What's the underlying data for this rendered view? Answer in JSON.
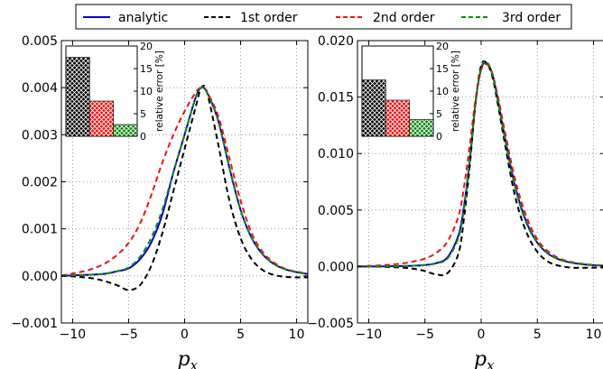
{
  "chart_data": [
    {
      "type": "line",
      "xlabel": "p_x",
      "ylabel": "",
      "xlim": [
        -11,
        11
      ],
      "ylim": [
        -0.001,
        0.005
      ],
      "xticks": [
        -10,
        -5,
        0,
        5,
        10
      ],
      "xtick_labels": [
        "−10",
        "−5",
        "0",
        "5",
        "10"
      ],
      "yticks": [
        -0.001,
        0.0,
        0.001,
        0.002,
        0.003,
        0.004,
        0.005
      ],
      "ytick_labels": [
        "−0.001",
        "0.000",
        "0.001",
        "0.002",
        "0.003",
        "0.004",
        "0.005"
      ],
      "grid": true,
      "x": [
        -11,
        -10,
        -9,
        -8,
        -7,
        -6,
        -5,
        -4,
        -3,
        -2,
        -1,
        0,
        1,
        1.5,
        2,
        3,
        4,
        5,
        6,
        7,
        8,
        9,
        10,
        11
      ],
      "series": [
        {
          "name": "analytic",
          "color": "#0000cc",
          "style": "solid",
          "values": [
            0,
            1e-05,
            2e-05,
            3e-05,
            5e-05,
            0.0001,
            0.00016,
            0.00035,
            0.0007,
            0.0013,
            0.0022,
            0.003,
            0.0038,
            0.004,
            0.0039,
            0.0033,
            0.0023,
            0.0014,
            0.0008,
            0.00045,
            0.00025,
            0.00014,
            8e-05,
            4e-05
          ]
        },
        {
          "name": "1st order",
          "color": "#000000",
          "style": "dashed",
          "values": [
            0,
            -1e-05,
            -3e-05,
            -6e-05,
            -0.00012,
            -0.0002,
            -0.0003,
            -0.0002,
            0.0002,
            0.0009,
            0.0018,
            0.0027,
            0.0036,
            0.004,
            0.0039,
            0.0028,
            0.0016,
            0.0008,
            0.00035,
            0.00012,
            2e-05,
            -2e-05,
            -3e-05,
            -3e-05
          ]
        },
        {
          "name": "2nd order",
          "color": "#ee1111",
          "style": "dashed",
          "values": [
            1e-05,
            5e-05,
            0.0001,
            0.00017,
            0.00028,
            0.00045,
            0.0007,
            0.0011,
            0.0017,
            0.0024,
            0.003,
            0.0035,
            0.0039,
            0.004,
            0.0039,
            0.0034,
            0.0025,
            0.0016,
            0.0009,
            0.0005,
            0.00028,
            0.00015,
            9e-05,
            5e-05
          ]
        },
        {
          "name": "3rd order",
          "color": "#118811",
          "style": "dashed",
          "values": [
            0,
            1e-05,
            2e-05,
            3e-05,
            5e-05,
            0.0001,
            0.00018,
            0.0004,
            0.0008,
            0.0014,
            0.0022,
            0.003,
            0.0038,
            0.004,
            0.0039,
            0.0033,
            0.0023,
            0.0014,
            0.0008,
            0.00045,
            0.00025,
            0.00014,
            8e-05,
            4e-05
          ]
        }
      ],
      "inset": {
        "type": "bar",
        "ylabel": "relative error [%]",
        "ylim": [
          0,
          20
        ],
        "yticks": [
          0,
          5,
          10,
          15,
          20
        ],
        "ytick_labels": [
          "0",
          "5",
          "10",
          "15",
          "20"
        ],
        "values": [
          17.5,
          7.8,
          2.6
        ],
        "colors": [
          "#000000",
          "#ee1111",
          "#118811"
        ]
      }
    },
    {
      "type": "line",
      "xlabel": "p_x",
      "ylabel": "",
      "xlim": [
        -11,
        11
      ],
      "ylim": [
        -0.005,
        0.02
      ],
      "xticks": [
        -10,
        -5,
        0,
        5,
        10
      ],
      "xtick_labels": [
        "−10",
        "−5",
        "0",
        "5",
        "10"
      ],
      "yticks": [
        -0.005,
        0.0,
        0.005,
        0.01,
        0.015,
        0.02
      ],
      "ytick_labels": [
        "−0.005",
        "0.000",
        "0.005",
        "0.010",
        "0.015",
        "0.020"
      ],
      "grid": true,
      "x": [
        -11,
        -10,
        -9,
        -8,
        -7,
        -6,
        -5,
        -4,
        -3,
        -2,
        -1.5,
        -1,
        -0.5,
        0,
        0.5,
        1,
        1.5,
        2,
        3,
        4,
        5,
        6,
        7,
        8,
        9,
        10,
        11
      ],
      "series": [
        {
          "name": "analytic",
          "color": "#0000cc",
          "style": "solid",
          "values": [
            0,
            0,
            1e-05,
            2e-05,
            4e-05,
            7e-05,
            0.00013,
            0.0003,
            0.0008,
            0.0028,
            0.0055,
            0.0095,
            0.0145,
            0.0175,
            0.018,
            0.017,
            0.0147,
            0.012,
            0.0072,
            0.004,
            0.0021,
            0.0011,
            0.0006,
            0.00035,
            0.0002,
            0.00012,
            7e-05
          ]
        },
        {
          "name": "1st order",
          "color": "#000000",
          "style": "dashed",
          "values": [
            0,
            0,
            -2e-05,
            -5e-05,
            -0.0001,
            -0.0002,
            -0.0004,
            -0.0007,
            -0.0006,
            0.0012,
            0.0045,
            0.009,
            0.0145,
            0.0178,
            0.018,
            0.0168,
            0.0143,
            0.0115,
            0.0063,
            0.0031,
            0.0013,
            0.0004,
            5e-05,
            -0.0001,
            -0.00012,
            -0.0001,
            -8e-05
          ]
        },
        {
          "name": "2nd order",
          "color": "#ee1111",
          "style": "dashed",
          "values": [
            2e-05,
            5e-05,
            0.0001,
            0.00017,
            0.00027,
            0.00045,
            0.0007,
            0.0012,
            0.0022,
            0.0045,
            0.0072,
            0.0108,
            0.0148,
            0.0174,
            0.0179,
            0.0171,
            0.015,
            0.0125,
            0.0078,
            0.0045,
            0.0024,
            0.0013,
            0.0007,
            0.0004,
            0.00024,
            0.00014,
            9e-05
          ]
        },
        {
          "name": "3rd order",
          "color": "#118811",
          "style": "dashed",
          "values": [
            0,
            0,
            1e-05,
            2e-05,
            4e-05,
            7e-05,
            0.00013,
            0.00028,
            0.0007,
            0.0026,
            0.0053,
            0.0094,
            0.0145,
            0.0176,
            0.0181,
            0.017,
            0.0146,
            0.0119,
            0.0071,
            0.0039,
            0.0021,
            0.0011,
            0.0006,
            0.00035,
            0.0002,
            0.00012,
            7e-05
          ]
        }
      ],
      "inset": {
        "type": "bar",
        "ylabel": "relative error [%]",
        "ylim": [
          0,
          20
        ],
        "yticks": [
          0,
          5,
          10,
          15,
          20
        ],
        "ytick_labels": [
          "0",
          "5",
          "10",
          "15",
          "20"
        ],
        "values": [
          12.5,
          8.0,
          3.7
        ],
        "colors": [
          "#000000",
          "#ee1111",
          "#118811"
        ]
      }
    }
  ],
  "legend": {
    "position": "top",
    "entries": [
      {
        "label": "analytic",
        "color": "#0000cc",
        "style": "solid"
      },
      {
        "label": "1st order",
        "color": "#000000",
        "style": "dashed"
      },
      {
        "label": "2nd order",
        "color": "#ee1111",
        "style": "dashed"
      },
      {
        "label": "3rd order",
        "color": "#118811",
        "style": "dashed"
      }
    ]
  }
}
